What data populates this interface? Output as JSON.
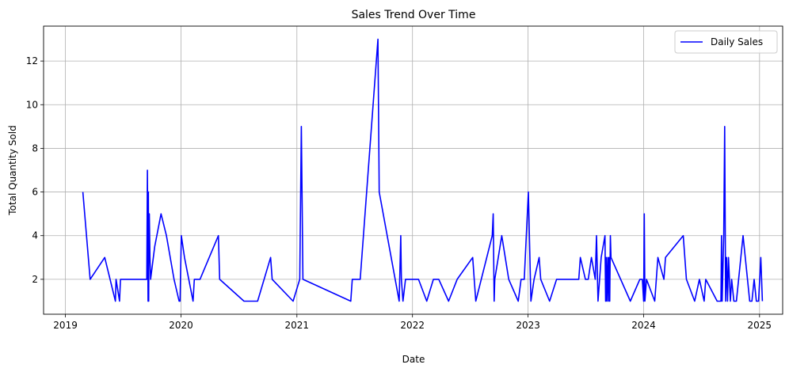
{
  "chart_data": {
    "type": "line",
    "title": "Sales Trend Over Time",
    "xlabel": "Date",
    "ylabel": "Total Quantity Sold",
    "xlim": [
      "2018-10-24",
      "2025-03-15"
    ],
    "ylim": [
      0.4,
      13.6
    ],
    "x_ticks": [
      "2019-01-01",
      "2020-01-01",
      "2021-01-01",
      "2022-01-01",
      "2023-01-01",
      "2024-01-01",
      "2025-01-01"
    ],
    "x_tick_labels": [
      "2019",
      "2020",
      "2021",
      "2022",
      "2023",
      "2024",
      "2025"
    ],
    "y_ticks": [
      2,
      4,
      6,
      8,
      10,
      12
    ],
    "grid": true,
    "legend_position": "top-right",
    "colors": {
      "line": "#0000ff",
      "grid": "#b0b0b0",
      "axis": "#000000"
    },
    "series": [
      {
        "name": "Daily Sales",
        "x": [
          "2019-02-25",
          "2019-03-20",
          "2019-05-05",
          "2019-06-08",
          "2019-06-10",
          "2019-06-21",
          "2019-06-24",
          "2019-09-15",
          "2019-09-17",
          "2019-09-19",
          "2019-09-20",
          "2019-09-21",
          "2019-09-22",
          "2019-09-23",
          "2019-09-25",
          "2019-09-27",
          "2019-10-10",
          "2019-10-30",
          "2019-11-16",
          "2019-12-10",
          "2019-12-26",
          "2019-12-29",
          "2020-01-02",
          "2020-01-12",
          "2020-02-08",
          "2020-02-12",
          "2020-03-01",
          "2020-04-28",
          "2020-05-02",
          "2020-07-18",
          "2020-08-30",
          "2020-10-10",
          "2020-10-15",
          "2020-12-20",
          "2021-01-10",
          "2021-01-15",
          "2021-01-20",
          "2021-06-20",
          "2021-06-25",
          "2021-07-20",
          "2021-09-14",
          "2021-09-18",
          "2021-11-20",
          "2021-11-25",
          "2021-11-27",
          "2021-12-02",
          "2021-12-10",
          "2022-01-20",
          "2022-02-15",
          "2022-03-08",
          "2022-03-25",
          "2022-04-25",
          "2022-05-22",
          "2022-07-10",
          "2022-07-20",
          "2022-09-10",
          "2022-09-13",
          "2022-09-16",
          "2022-09-18",
          "2022-10-10",
          "2022-11-01",
          "2022-12-01",
          "2022-12-10",
          "2022-12-20",
          "2023-01-02",
          "2023-01-10",
          "2023-01-20",
          "2023-02-05",
          "2023-02-10",
          "2023-03-10",
          "2023-04-01",
          "2023-06-10",
          "2023-06-15",
          "2023-07-01",
          "2023-07-10",
          "2023-07-20",
          "2023-08-01",
          "2023-08-05",
          "2023-08-10",
          "2023-08-20",
          "2023-09-01",
          "2023-09-03",
          "2023-09-05",
          "2023-09-07",
          "2023-09-10",
          "2023-09-12",
          "2023-09-14",
          "2023-09-16",
          "2023-09-18",
          "2023-09-20",
          "2023-11-20",
          "2023-12-20",
          "2023-12-28",
          "2024-01-01",
          "2024-01-03",
          "2024-01-05",
          "2024-01-10",
          "2024-02-05",
          "2024-02-15",
          "2024-03-05",
          "2024-03-10",
          "2024-05-05",
          "2024-05-15",
          "2024-06-10",
          "2024-06-25",
          "2024-07-10",
          "2024-07-15",
          "2024-08-20",
          "2024-09-01",
          "2024-09-03",
          "2024-09-05",
          "2024-09-10",
          "2024-09-13",
          "2024-09-16",
          "2024-09-19",
          "2024-09-22",
          "2024-09-25",
          "2024-09-28",
          "2024-10-01",
          "2024-10-05",
          "2024-10-12",
          "2024-10-20",
          "2024-11-10",
          "2024-12-01",
          "2024-12-08",
          "2024-12-15",
          "2024-12-22",
          "2024-12-29",
          "2025-01-05",
          "2025-01-10"
        ],
        "values": [
          6,
          2,
          3,
          1,
          2,
          1,
          2,
          2,
          7,
          1,
          6,
          1,
          5,
          5,
          3,
          2,
          3.5,
          5,
          4,
          2,
          1,
          1,
          4,
          3,
          1,
          2,
          2,
          4,
          2,
          1,
          1,
          3,
          2,
          1,
          2,
          9,
          2,
          1,
          2,
          2,
          13,
          6,
          1,
          4,
          2,
          1,
          2,
          2,
          1,
          2,
          2,
          1,
          2,
          3,
          1,
          4,
          5,
          1,
          2,
          4,
          2,
          1,
          2,
          2,
          6,
          1,
          2,
          3,
          2,
          1,
          2,
          2,
          3,
          2,
          2,
          3,
          2,
          4,
          1,
          3,
          4,
          1,
          3,
          1,
          3,
          1,
          3,
          1,
          4,
          3,
          1,
          2,
          2,
          1,
          5,
          1,
          2,
          1,
          3,
          2,
          3,
          4,
          2,
          1,
          2,
          1,
          2,
          1,
          1,
          4,
          1,
          4,
          9,
          1,
          3,
          1,
          3,
          2,
          1,
          2,
          1,
          1,
          4,
          1,
          1,
          2,
          1,
          1,
          3,
          1
        ]
      }
    ]
  }
}
